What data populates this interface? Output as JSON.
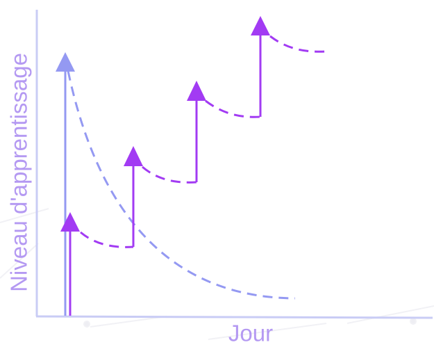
{
  "diagram": {
    "ylabel": "Niveau d'apprentissage",
    "xlabel": "Jour",
    "colors": {
      "forgetting_curve": "#9499f2",
      "review_curve": "#a23bf3",
      "axis": "#c9ccf5",
      "label": "#b499f2",
      "background_grid": "#f3f3f7"
    },
    "curves": [
      {
        "kind": "learning-without-review",
        "arrows": 1,
        "line": "dashed"
      },
      {
        "kind": "learning-with-reviews",
        "arrows": 4,
        "line": "dashed"
      }
    ]
  }
}
